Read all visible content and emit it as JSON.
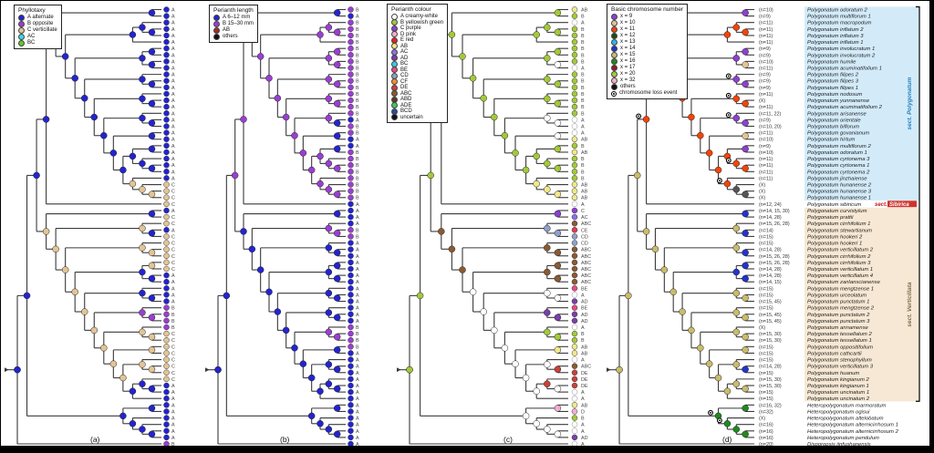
{
  "figure": {
    "captions": [
      "(a)",
      "(b)",
      "(c)",
      "(d)"
    ]
  },
  "legends": {
    "a": {
      "title": "Phyllotaxy",
      "items": [
        {
          "code": "A",
          "label": "A  alternate",
          "color": "#2424cf"
        },
        {
          "code": "B",
          "label": "B  opposite",
          "color": "#9a3fd1"
        },
        {
          "code": "C",
          "label": "C  verticillate",
          "color": "#e3c495"
        },
        {
          "code": "AC",
          "label": "AC",
          "color": "#35dbe8"
        },
        {
          "code": "BC",
          "label": "BC",
          "color": "#5ecb21"
        }
      ]
    },
    "b": {
      "title": "Perianth length",
      "items": [
        {
          "code": "A",
          "label": "A  6–12 mm",
          "color": "#2424cf"
        },
        {
          "code": "B",
          "label": "B  15–30 mm",
          "color": "#9a3fd1"
        },
        {
          "code": "AB",
          "label": "AB",
          "color": "#a52d22"
        },
        {
          "code": "others",
          "label": "others",
          "color": "#111111"
        }
      ]
    },
    "c": {
      "title": "Perianth colour",
      "items": [
        {
          "code": "A",
          "label": "A  creamy-white",
          "color": "#ffffff"
        },
        {
          "code": "B",
          "label": "B  yellowish green",
          "color": "#a3c93a"
        },
        {
          "code": "C",
          "label": "C  purple",
          "color": "#8e3fd1"
        },
        {
          "code": "D",
          "label": "D  pink",
          "color": "#f2aed2"
        },
        {
          "code": "E",
          "label": "E  red",
          "color": "#e8211d"
        },
        {
          "code": "AB",
          "label": "AB",
          "color": "#efe98a"
        },
        {
          "code": "AC",
          "label": "AC",
          "color": "#8f6fe8"
        },
        {
          "code": "AD",
          "label": "AD",
          "color": "#7a3fa8"
        },
        {
          "code": "BC",
          "label": "BC",
          "color": "#35cde8"
        },
        {
          "code": "BE",
          "label": "BE",
          "color": "#e84a86"
        },
        {
          "code": "CD",
          "label": "CD",
          "color": "#8fa0c9"
        },
        {
          "code": "CF",
          "label": "CF",
          "color": "#f59127"
        },
        {
          "code": "DE",
          "label": "DE",
          "color": "#c9413a"
        },
        {
          "code": "ABC",
          "label": "ABC",
          "color": "#8a5a33"
        },
        {
          "code": "ABD",
          "label": "ABD",
          "color": "#5e3c21"
        },
        {
          "code": "ADE",
          "label": "ADE",
          "color": "#3fca5e"
        },
        {
          "code": "BCD",
          "label": "BCD",
          "color": "#2b4a9e"
        },
        {
          "code": "uncertain",
          "label": "uncertain",
          "color": "#111111"
        }
      ],
      "extra_state_colors": {
        "CE": "#e03a52"
      }
    },
    "d": {
      "title": "Basic chromosome number",
      "items": [
        {
          "code": "9",
          "label": "x = 9",
          "color": "#8e3fd1"
        },
        {
          "code": "10",
          "label": "x = 10",
          "color": "#e3c495"
        },
        {
          "code": "11",
          "label": "x = 11",
          "color": "#f2440a"
        },
        {
          "code": "12",
          "label": "x = 12",
          "color": "#145214"
        },
        {
          "code": "13",
          "label": "x = 13",
          "color": "#35b3e8"
        },
        {
          "code": "14",
          "label": "x = 14",
          "color": "#2433cc"
        },
        {
          "code": "15",
          "label": "x = 15",
          "color": "#c9bc6b"
        },
        {
          "code": "16",
          "label": "x = 16",
          "color": "#1f8a1f"
        },
        {
          "code": "17",
          "label": "x = 17",
          "color": "#8a2121"
        },
        {
          "code": "20",
          "label": "x = 20",
          "color": "#a3c93a"
        },
        {
          "code": "32",
          "label": "x = 32",
          "color": "#f2aed2"
        },
        {
          "code": "others",
          "label": "others",
          "color": "#111111"
        }
      ],
      "loss_event_label": "chromosome loss event"
    }
  },
  "tips": {
    "species": [
      "Polygonatum odoratum 2",
      "Polygonatum multiflorum 1",
      "Polygonatum macropodum",
      "Polygonatum inflatum 2",
      "Polygonatum inflatum 3",
      "Polygonatum inflatum 1",
      "Polygonatum involucratum 1",
      "Polygonatum involucratum 2",
      "Polygonatum humile",
      "Polygonatum acuminatifolium 1",
      "Polygonatum filipes 2",
      "Polygonatum filipes 3",
      "Polygonatum filipes 1",
      "Polygonatum nodosum",
      "Polygonatum yunnanense",
      "Polygonatum acuminatifolium 2",
      "Polygonatum arisanense",
      "Polygonatum orientale",
      "Polygonatum biflorum",
      "Polygonatum govanianum",
      "Polygonatum hirtum",
      "Polygonatum multiflorum 2",
      "Polygonatum odoratum 1",
      "Polygonatum cyrtonema 3",
      "Polygonatum cyrtonema 1",
      "Polygonatum cyrtonema 2",
      "Polygonatum jinzhaiense",
      "Polygonatum hunanense 2",
      "Polygonatum hunanense 3",
      "Polygonatum hunanense 1",
      "Polygonatum sibiricum",
      "Polygonatum curvistylum",
      "Polygonatum prattii",
      "Polygonatum cirrhifolium 1",
      "Polygonatum stewartianum",
      "Polygonatum hookeri 2",
      "Polygonatum hookeri 1",
      "Polygonatum verticillatum 2",
      "Polygonatum cirrhifolium 2",
      "Polygonatum cirrhifolium 3",
      "Polygonatum verticillatum 1",
      "Polygonatum verticillatum 4",
      "Polygonatum zanlanscianense",
      "Polygonatum mengtzense 1",
      "Polygonatum urceolatum",
      "Polygonatum punctatum 1",
      "Polygonatum mengtzense 2",
      "Polygonatum punctatum 2",
      "Polygonatum punctatum 3",
      "Polygonatum annamense",
      "Polygonatum tessellatum 2",
      "Polygonatum tessellatum 1",
      "Polygonatum oppositifolium",
      "Polygonatum cathcartii",
      "Polygonatum stenophyllum",
      "Polygonatum verticillatum 3",
      "Polygonatum huanum",
      "Polygonatum kingianum 2",
      "Polygonatum kingianum 1",
      "Polygonatum uncinatum 1",
      "Polygonatum uncinatum 2",
      "Heteropolygonatum marmoratum",
      "Heteropolygonatum ogisui",
      "Heteropolygonatum altelobatum",
      "Heteropolygonatum alternicirrhosum 1",
      "Heteropolygonatum alternicirrhosum 2",
      "Heteropolygonatum pendulum",
      "Disporopsis jinfushanensis"
    ],
    "n_labels": [
      "(n=10)",
      "(n=9)",
      "(n=11)",
      "(n=11)",
      "(n=11)",
      "(n=11)",
      "(n=9)",
      "(n=9)",
      "(n=10)",
      "(n=11)",
      "(n=9)",
      "(n=9)",
      "(n=9)",
      "(n=11)",
      "(X)",
      "(n=11)",
      "(n=11, 22)",
      "(n=9)",
      "(n=10, 20)",
      "(n=11)",
      "(n=10)",
      "(n=9)",
      "(n=10)",
      "(n=11)",
      "(n=11)",
      "(n=11)",
      "(n=11)",
      "(X)",
      "(X)",
      "(X)",
      "(n=12, 24)",
      "(n=14, 15, 30)",
      "(n=14, 28)",
      "(n=15, 26, 28)",
      "(n=14)",
      "(n=15)",
      "(n=15)",
      "(n=14, 28)",
      "(n=15, 26, 28)",
      "(n=15, 26, 28)",
      "(n=14, 28)",
      "(n=14, 28)",
      "(n=14, 15)",
      "(n=15)",
      "(n=15)",
      "(n=15, 45)",
      "(n=15)",
      "(n=15, 45)",
      "(n=15, 45)",
      "(X)",
      "(n=15, 30)",
      "(n=15, 30)",
      "(n=15)",
      "(n=15)",
      "(n=15)",
      "(n=14, 28)",
      "(n=15)",
      "(n=15, 30)",
      "(n=15, 30)",
      "(n=15)",
      "(n=15)",
      "(n=16, 32)",
      "(n=32)",
      "(X)",
      "(n=16)",
      "(n=16)",
      "(n=16)",
      "(n=20)"
    ],
    "states_a": [
      "A",
      "A",
      "A",
      "A",
      "A",
      "A",
      "A",
      "A",
      "A",
      "A",
      "A",
      "A",
      "A",
      "A",
      "A",
      "A",
      "A",
      "A",
      "A",
      "A",
      "A",
      "A",
      "A",
      "A",
      "A",
      "A",
      "A",
      "C",
      "C",
      "C",
      "C",
      "A",
      "C",
      "C",
      "A",
      "C",
      "C",
      "C",
      "C",
      "C",
      "C",
      "A",
      "A",
      "A",
      "A",
      "A",
      "B",
      "B",
      "B",
      "B",
      "C",
      "C",
      "C",
      "C",
      "C",
      "C",
      "C",
      "C",
      "A",
      "A",
      "A",
      "A",
      "A",
      "A",
      "A",
      "A",
      "A",
      "B"
    ],
    "states_b": [
      "B",
      "A",
      "B",
      "B",
      "B",
      "B",
      "B",
      "B",
      "B",
      "B",
      "B",
      "B",
      "B",
      "B",
      "B",
      "B",
      "B",
      "A",
      "B",
      "B",
      "A",
      "A",
      "B",
      "B",
      "B",
      "B",
      "B",
      "B",
      "B",
      "B",
      "A",
      "A",
      "A",
      "A",
      "B",
      "B",
      "A",
      "A",
      "A",
      "A",
      "A",
      "A",
      "A",
      "A",
      "A",
      "A",
      "A",
      "A",
      "A",
      "B",
      "B",
      "B",
      "B",
      "A",
      "A",
      "A",
      "A",
      "A",
      "A",
      "A",
      "A",
      "A",
      "A",
      "A",
      "A",
      "A",
      "A",
      "A"
    ],
    "states_c": [
      "AB",
      "B",
      "A",
      "B",
      "B",
      "B",
      "B",
      "B",
      "B",
      "A",
      "B",
      "B",
      "B",
      "B",
      "B",
      "B",
      "B",
      "A",
      "A",
      "A",
      "AB",
      "B",
      "AB",
      "B",
      "B",
      "B",
      "B",
      "AB",
      "AB",
      "AB",
      "A",
      "C",
      "AC",
      "ABC",
      "CE",
      "CD",
      "CD",
      "ABC",
      "ABC",
      "ABC",
      "ABC",
      "ABC",
      "ABC",
      "BE",
      "A",
      "AD",
      "BE",
      "AD",
      "AD",
      "A",
      "B",
      "B",
      "AB",
      "AB",
      "A",
      "ABC",
      "DE",
      "DE",
      "DE",
      "A",
      "A",
      "AB",
      "D",
      "B",
      "A",
      "A",
      "AD",
      "A"
    ]
  },
  "sections": [
    {
      "label": "sect. Polygonatum",
      "rows": [
        1,
        30
      ],
      "fill": "#d3ebf9",
      "text_color": "#1d7dbd"
    },
    {
      "label": "sect. Sibirica",
      "rows": [
        31,
        31
      ],
      "fill": "#d0342c",
      "text_color": "#c01818"
    },
    {
      "label": "sect. Verticillata",
      "rows": [
        32,
        61
      ],
      "fill": "#f6e8d4",
      "text_color": "#7a6a4a"
    }
  ]
}
